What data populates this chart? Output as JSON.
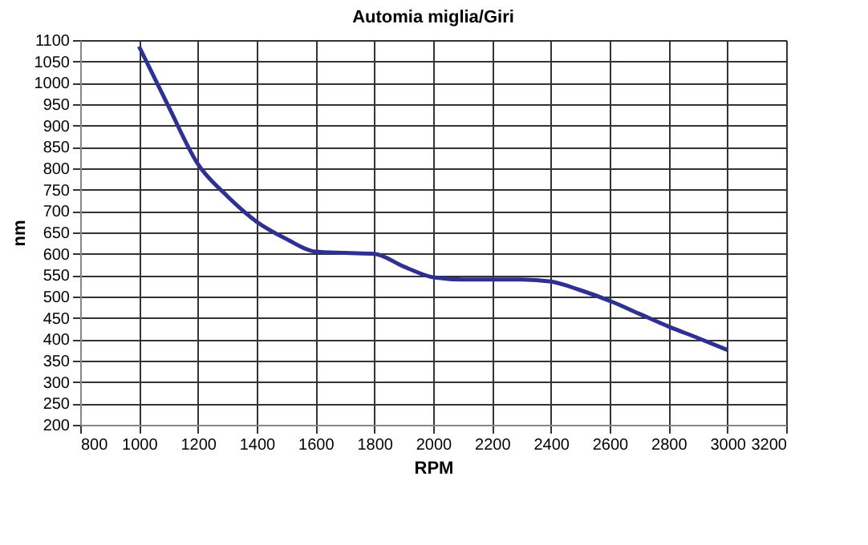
{
  "chart_data": {
    "type": "line",
    "title": "Automia miglia/Giri",
    "xlabel": "RPM",
    "ylabel": "nm",
    "x": [
      1000,
      1100,
      1200,
      1300,
      1400,
      1500,
      1600,
      1700,
      1800,
      1900,
      2000,
      2100,
      2200,
      2300,
      2400,
      2500,
      2600,
      2700,
      2800,
      2900,
      3000
    ],
    "series": [
      {
        "color": "#2e3192",
        "values": [
          1085,
          945,
          810,
          735,
          675,
          635,
          605,
          602,
          600,
          570,
          545,
          540,
          540,
          540,
          535,
          515,
          490,
          460,
          430,
          403,
          375
        ]
      }
    ],
    "xlim": [
      800,
      3200
    ],
    "xticks": [
      800,
      1000,
      1200,
      1400,
      1600,
      1800,
      2000,
      2200,
      2400,
      2600,
      2800,
      3000,
      3200
    ],
    "ylim": [
      200,
      1100
    ],
    "yticks": [
      200,
      250,
      300,
      350,
      400,
      450,
      500,
      550,
      600,
      650,
      700,
      750,
      800,
      850,
      900,
      950,
      1000,
      1050,
      1100
    ],
    "grid": true,
    "marker": "none",
    "line_style": "solid"
  }
}
